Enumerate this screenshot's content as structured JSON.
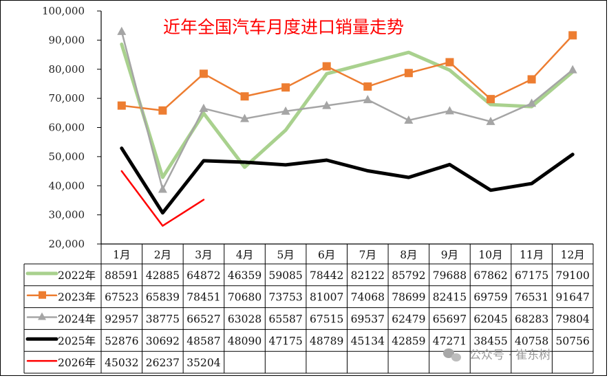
{
  "chart_data": {
    "type": "line",
    "title": "近年全国汽车月度进口销量走势",
    "xlabel": "",
    "ylabel": "",
    "ylim": [
      20000,
      100000
    ],
    "yticks": [
      "100,000",
      "90,000",
      "80,000",
      "70,000",
      "60,000",
      "50,000",
      "40,000",
      "30,000",
      "20,000"
    ],
    "grid": false,
    "legend_position": "data-table-left",
    "categories": [
      "1月",
      "2月",
      "3月",
      "4月",
      "5月",
      "6月",
      "7月",
      "8月",
      "9月",
      "10月",
      "11月",
      "12月"
    ],
    "series": [
      {
        "name": "2022年",
        "color": "#a9d18e",
        "marker": "none",
        "values": [
          88591,
          42885,
          64872,
          46359,
          59085,
          78442,
          82122,
          85792,
          79688,
          67862,
          67175,
          79100
        ]
      },
      {
        "name": "2023年",
        "color": "#ed7d31",
        "marker": "square",
        "values": [
          67523,
          65839,
          78451,
          70680,
          73753,
          81007,
          74068,
          78699,
          82415,
          69759,
          76531,
          91647
        ]
      },
      {
        "name": "2024年",
        "color": "#a5a5a5",
        "marker": "triangle",
        "values": [
          92957,
          38775,
          66527,
          63028,
          65587,
          67515,
          69537,
          62479,
          65697,
          62045,
          68283,
          79804
        ]
      },
      {
        "name": "2025年",
        "color": "#000000",
        "marker": "none",
        "values": [
          52876,
          30692,
          48587,
          48090,
          47175,
          48789,
          45134,
          42859,
          47271,
          38455,
          40758,
          50756
        ]
      },
      {
        "name": "2026年",
        "color": "#ff0000",
        "marker": "none",
        "values": [
          45032,
          26237,
          35204,
          null,
          null,
          null,
          null,
          null,
          null,
          null,
          null,
          null
        ]
      }
    ]
  },
  "watermark": {
    "text": "公众号 · 崔东树"
  }
}
